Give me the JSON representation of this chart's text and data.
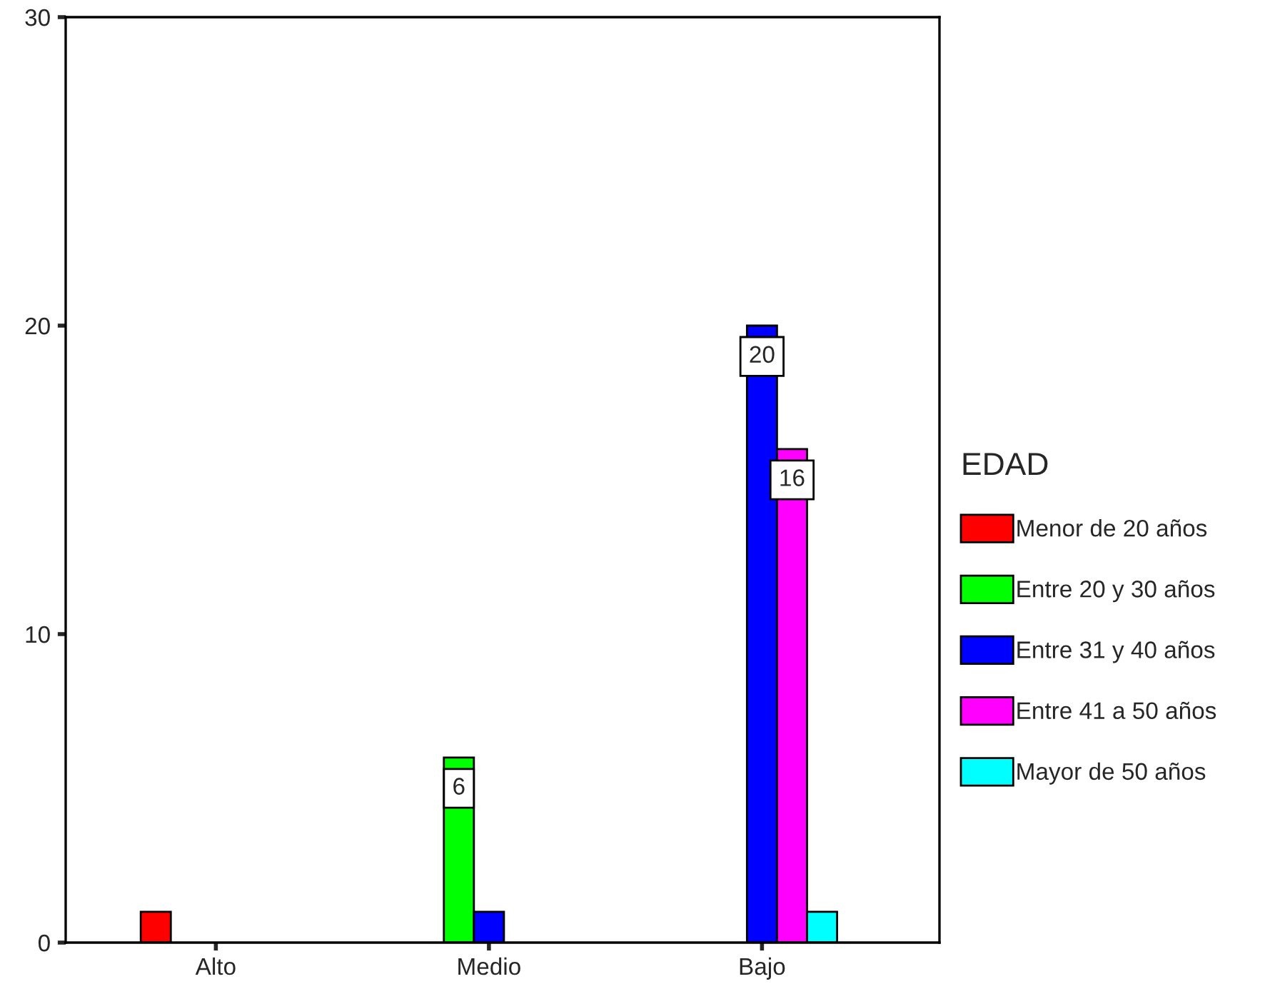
{
  "chart_data": {
    "type": "bar",
    "categories": [
      "Alto",
      "Medio",
      "Bajo"
    ],
    "series": [
      {
        "name": "Menor de 20 años",
        "color": "#ff0000",
        "values": [
          1,
          null,
          null
        ]
      },
      {
        "name": "Entre 20 y 30 años",
        "color": "#00ff00",
        "values": [
          null,
          6,
          null
        ],
        "value_labels": [
          null,
          "6",
          null
        ]
      },
      {
        "name": "Entre 31 y 40 años",
        "color": "#0000ff",
        "values": [
          null,
          1,
          20
        ],
        "value_labels": [
          null,
          null,
          "20"
        ]
      },
      {
        "name": "Entre 41 a 50 años",
        "color": "#ff00ff",
        "values": [
          null,
          null,
          16
        ],
        "value_labels": [
          null,
          null,
          "16"
        ]
      },
      {
        "name": "Mayor de 50 años",
        "color": "#00ffff",
        "values": [
          null,
          null,
          1
        ]
      }
    ],
    "legend_title": "EDAD",
    "legend": "right",
    "grid": false,
    "ylim": [
      0,
      30
    ],
    "yticks": [
      0,
      10,
      20,
      30
    ]
  }
}
